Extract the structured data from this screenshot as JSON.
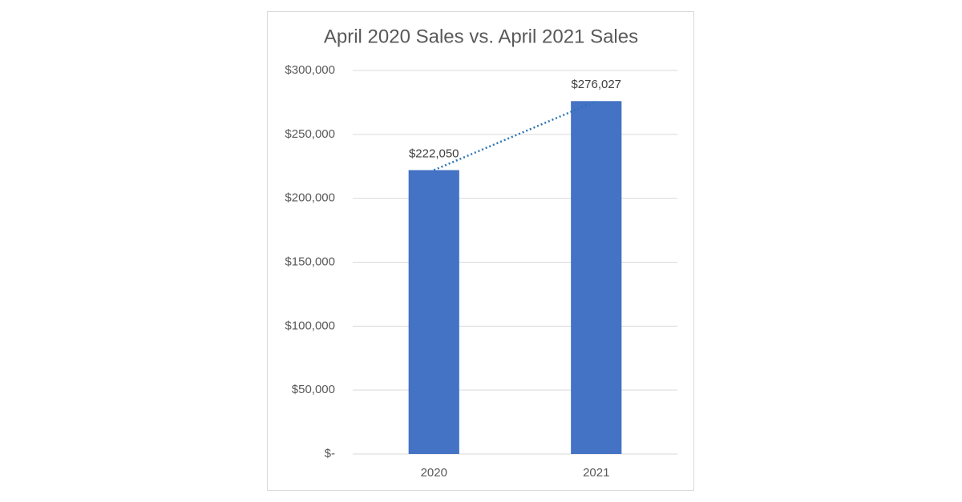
{
  "chart_data": {
    "type": "bar",
    "title": "April 2020 Sales vs. April 2021 Sales",
    "categories": [
      "2020",
      "2021"
    ],
    "values": [
      222050,
      276027
    ],
    "value_labels": [
      "$222,050",
      "$276,027"
    ],
    "color": "#4472c4",
    "ylim": [
      0,
      300000
    ],
    "yticks": [
      {
        "value": 0,
        "label": "$-"
      },
      {
        "value": 50000,
        "label": "$50,000"
      },
      {
        "value": 100000,
        "label": "$100,000"
      },
      {
        "value": 150000,
        "label": "$150,000"
      },
      {
        "value": 200000,
        "label": "$200,000"
      },
      {
        "value": 250000,
        "label": "$250,000"
      },
      {
        "value": 300000,
        "label": "$300,000"
      }
    ],
    "grid": true,
    "trendline": true,
    "trendline_color": "#2e75b6"
  }
}
